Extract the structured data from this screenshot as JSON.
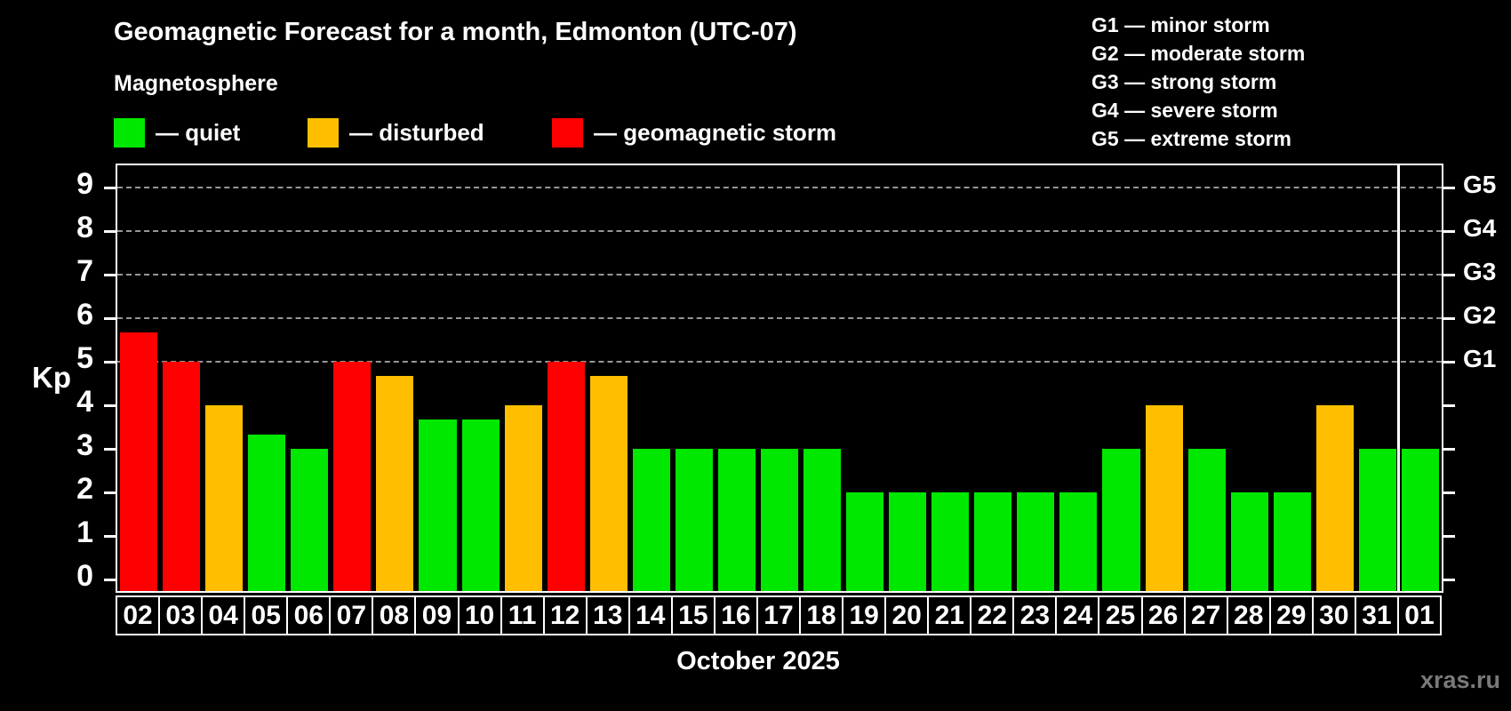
{
  "header": {
    "title": "Geomagnetic Forecast for a month, Edmonton (UTC-07)",
    "subtitle": "Magnetosphere"
  },
  "legend": {
    "items": [
      {
        "name": "quiet",
        "label": "— quiet",
        "color": "#00e800",
        "x": 128
      },
      {
        "name": "disturbed",
        "label": "— disturbed",
        "color": "#ffbf00",
        "x": 346
      },
      {
        "name": "storm",
        "label": "— geomagnetic storm",
        "color": "#ff0000",
        "x": 621
      }
    ]
  },
  "g_legend": {
    "lines": [
      "G1 — minor storm",
      "G2 — moderate storm",
      "G3 — strong storm",
      "G4 — severe storm",
      "G5 — extreme storm"
    ]
  },
  "chart_data": {
    "type": "bar",
    "title": "Geomagnetic Forecast for a month, Edmonton (UTC-07)",
    "subtitle": "Magnetosphere",
    "ylabel": "Kp",
    "xlabel": "October 2025",
    "ylim": [
      0,
      9.5
    ],
    "yticks": [
      0,
      1,
      2,
      3,
      4,
      5,
      6,
      7,
      8,
      9
    ],
    "grid_levels": [
      5,
      6,
      7,
      8,
      9
    ],
    "grid": "horizontal dashed gray lines at Kp 5-9 only",
    "legend_position": "top-left",
    "right_axis": [
      {
        "label": "G1",
        "value": 5
      },
      {
        "label": "G2",
        "value": 6
      },
      {
        "label": "G3",
        "value": 7
      },
      {
        "label": "G4",
        "value": 8
      },
      {
        "label": "G5",
        "value": 9
      }
    ],
    "categories": [
      "02",
      "03",
      "04",
      "05",
      "06",
      "07",
      "08",
      "09",
      "10",
      "11",
      "12",
      "13",
      "14",
      "15",
      "16",
      "17",
      "18",
      "19",
      "20",
      "21",
      "22",
      "23",
      "24",
      "25",
      "26",
      "27",
      "28",
      "29",
      "30",
      "31",
      "01"
    ],
    "values": [
      5.67,
      5,
      4,
      3.33,
      3,
      5,
      4.67,
      3.67,
      3.67,
      4,
      5,
      4.67,
      3,
      3,
      3,
      3,
      3,
      2,
      2,
      2,
      2,
      2,
      2,
      3,
      4,
      3,
      2,
      2,
      4,
      3,
      3
    ],
    "statuses": [
      "storm",
      "storm",
      "disturbed",
      "quiet",
      "quiet",
      "storm",
      "disturbed",
      "quiet",
      "quiet",
      "disturbed",
      "storm",
      "disturbed",
      "quiet",
      "quiet",
      "quiet",
      "quiet",
      "quiet",
      "quiet",
      "quiet",
      "quiet",
      "quiet",
      "quiet",
      "quiet",
      "quiet",
      "disturbed",
      "quiet",
      "quiet",
      "quiet",
      "disturbed",
      "quiet",
      "quiet"
    ],
    "status_colors": {
      "quiet": "#00e800",
      "disturbed": "#ffbf00",
      "storm": "#ff0000"
    },
    "month_separator_index": 30
  },
  "footer": {
    "watermark": "xras.ru"
  }
}
